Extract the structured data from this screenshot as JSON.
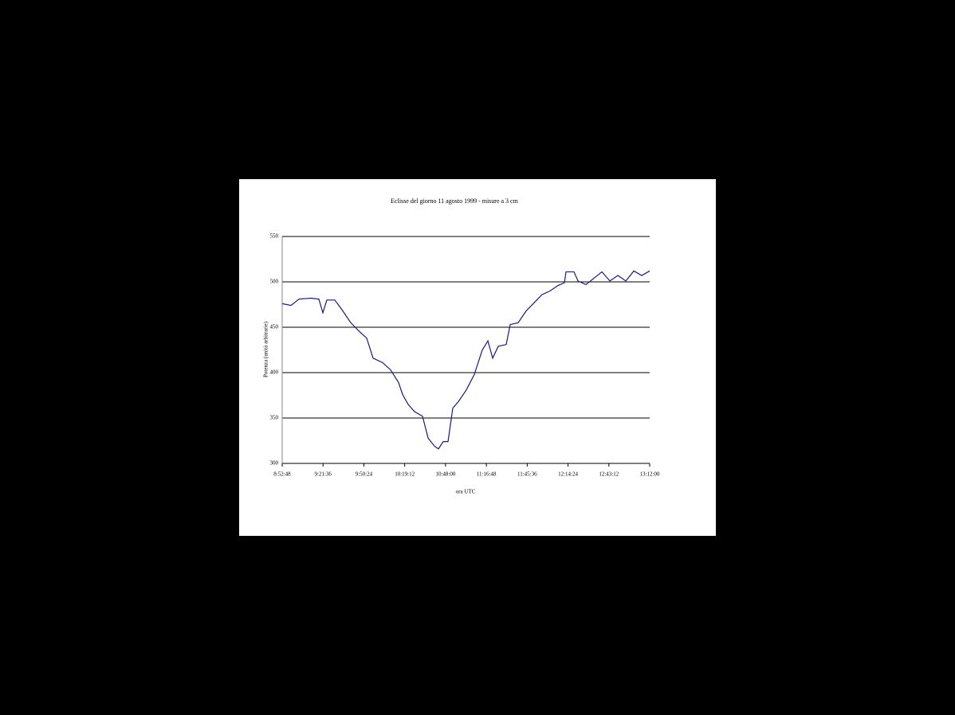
{
  "chart_data": {
    "type": "line",
    "title": "Eclisse del giorno 11 agosto 1999 - misure a 3 cm",
    "x_label": "ora UTC",
    "y_label": "Potenza (unità arbitrarie)",
    "x": [
      31968,
      32339,
      32677,
      33183,
      33520,
      33689,
      33857,
      34195,
      34532,
      34870,
      35207,
      35544,
      35814,
      36219,
      36557,
      36894,
      37063,
      37299,
      37569,
      37906,
      38142,
      38412,
      38581,
      38783,
      38986,
      39188,
      39424,
      39761,
      40099,
      40437,
      40673,
      40875,
      41111,
      41449,
      41618,
      41955,
      42292,
      42630,
      42967,
      43305,
      43642,
      43912,
      43979,
      44317,
      44486,
      44823,
      45161,
      45498,
      45836,
      46173,
      46510,
      46848,
      47185,
      47520
    ],
    "series": [
      {
        "name": "misure a 3 cm",
        "color": "#1a1a7a",
        "values": [
          476,
          474,
          481,
          482,
          481,
          466,
          480,
          480,
          468,
          455,
          446,
          438,
          416,
          411,
          403,
          389,
          376,
          365,
          357,
          352,
          328,
          319,
          316,
          324,
          324,
          361,
          368,
          381,
          398,
          425,
          435,
          416,
          429,
          431,
          453,
          455,
          468,
          477,
          486,
          490,
          496,
          499,
          511,
          511,
          501,
          497,
          504,
          511,
          501,
          507,
          501,
          512,
          507,
          512
        ]
      }
    ],
    "xlim": [
      31968,
      47520
    ],
    "xticks": [
      {
        "value": 31968,
        "label": "8:52:48"
      },
      {
        "value": 33696,
        "label": "9:21:36"
      },
      {
        "value": 35424,
        "label": "9:50:24"
      },
      {
        "value": 37152,
        "label": "10:19:12"
      },
      {
        "value": 38880,
        "label": "10:48:00"
      },
      {
        "value": 40608,
        "label": "11:16:48"
      },
      {
        "value": 42336,
        "label": "11:45:36"
      },
      {
        "value": 44064,
        "label": "12:14:24"
      },
      {
        "value": 45792,
        "label": "12:43:12"
      },
      {
        "value": 47520,
        "label": "13:12:00"
      }
    ],
    "ylim": [
      300,
      550
    ],
    "yticks": [
      300,
      350,
      400,
      450,
      500,
      550
    ],
    "grid": true
  }
}
